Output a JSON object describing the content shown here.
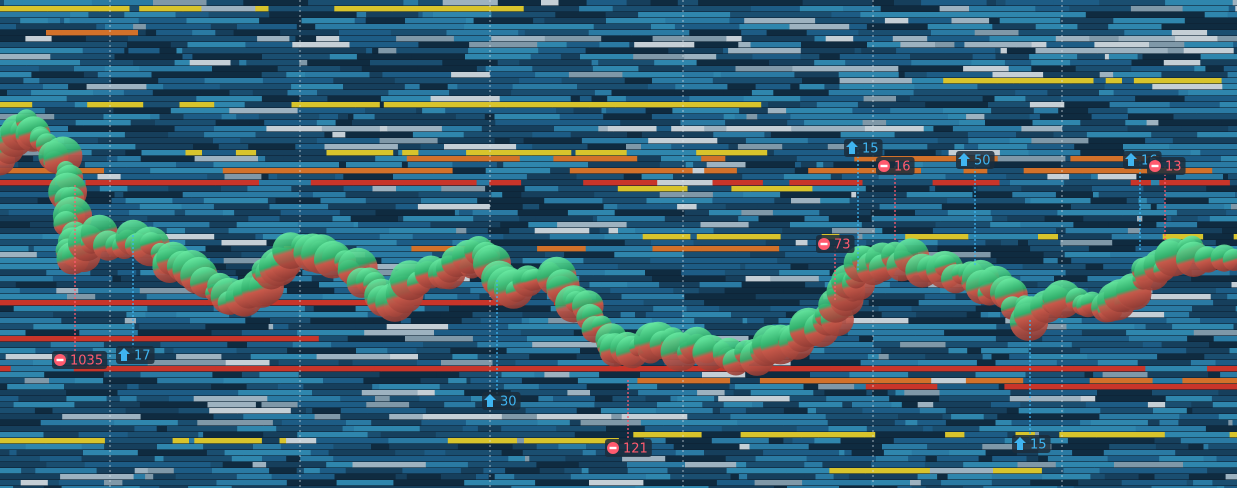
{
  "markers": [
    {
      "label": "1035",
      "color": "#ff5a6e"
    },
    {
      "label": "17",
      "color": "#3fb4f0"
    },
    {
      "label": "30",
      "color": "#3fb4f0"
    },
    {
      "label": "121",
      "color": "#ff5a6e"
    },
    {
      "label": "73",
      "color": "#ff5a6e"
    },
    {
      "label": "15",
      "color": "#3fb4f0"
    },
    {
      "label": "16",
      "color": "#ff5a6e"
    },
    {
      "label": "50",
      "color": "#3fb4f0"
    },
    {
      "label": "16",
      "color": "#3fb4f0"
    },
    {
      "label": "13",
      "color": "#ff5a6e"
    },
    {
      "label": "15",
      "color": "#3fb4f0"
    }
  ]
}
